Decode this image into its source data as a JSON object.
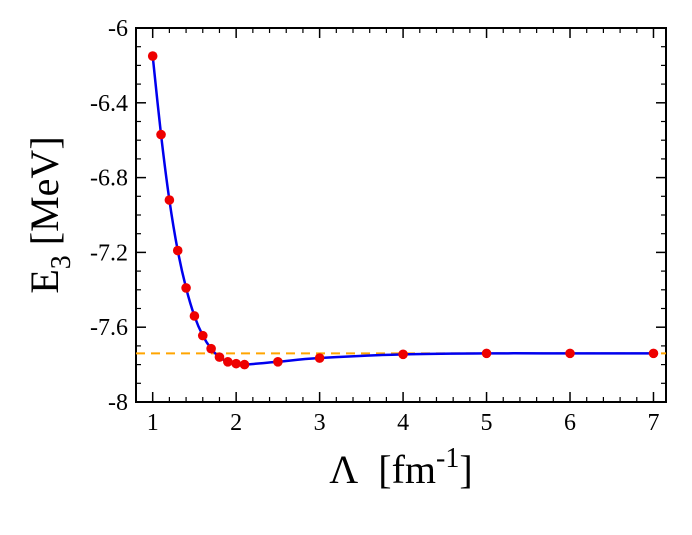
{
  "chart_data": {
    "type": "line",
    "title": "",
    "xlabel": {
      "symbol": "Λ",
      "unit_open": "[fm",
      "unit_superscript": "-1",
      "unit_close": "]"
    },
    "ylabel": {
      "symbol": "E",
      "subscript": "3",
      "unit": "[MeV]"
    },
    "xlim": [
      0.8,
      7.15
    ],
    "ylim": [
      -8.0,
      -6.0
    ],
    "x_ticks": [
      1,
      2,
      3,
      4,
      5,
      6,
      7
    ],
    "x_tick_labels": [
      "1",
      "2",
      "3",
      "4",
      "5",
      "6",
      "7"
    ],
    "y_ticks": [
      -8.0,
      -7.6,
      -7.2,
      -6.8,
      -6.4,
      -6.0
    ],
    "y_tick_labels": [
      "-8",
      "-7.6",
      "-7.2",
      "-6.8",
      "-6.4",
      "-6"
    ],
    "x_minor_step": 0.2,
    "y_minor_step": 0.1,
    "grid": false,
    "legend": null,
    "series": [
      {
        "kind": "line+markers",
        "color": "#0000ee",
        "marker_color": "#ee0000",
        "x": [
          1.0,
          1.1,
          1.2,
          1.3,
          1.4,
          1.5,
          1.6,
          1.7,
          1.8,
          1.9,
          2.0,
          2.1,
          2.5,
          3.0,
          4.0,
          5.0,
          6.0,
          7.0
        ],
        "y": [
          -6.15,
          -6.57,
          -6.92,
          -7.19,
          -7.39,
          -7.54,
          -7.645,
          -7.715,
          -7.76,
          -7.785,
          -7.795,
          -7.8,
          -7.785,
          -7.765,
          -7.745,
          -7.74,
          -7.74,
          -7.74
        ]
      },
      {
        "kind": "reference-line",
        "color": "#ffa500",
        "dashed": true,
        "y": -7.74
      }
    ]
  }
}
